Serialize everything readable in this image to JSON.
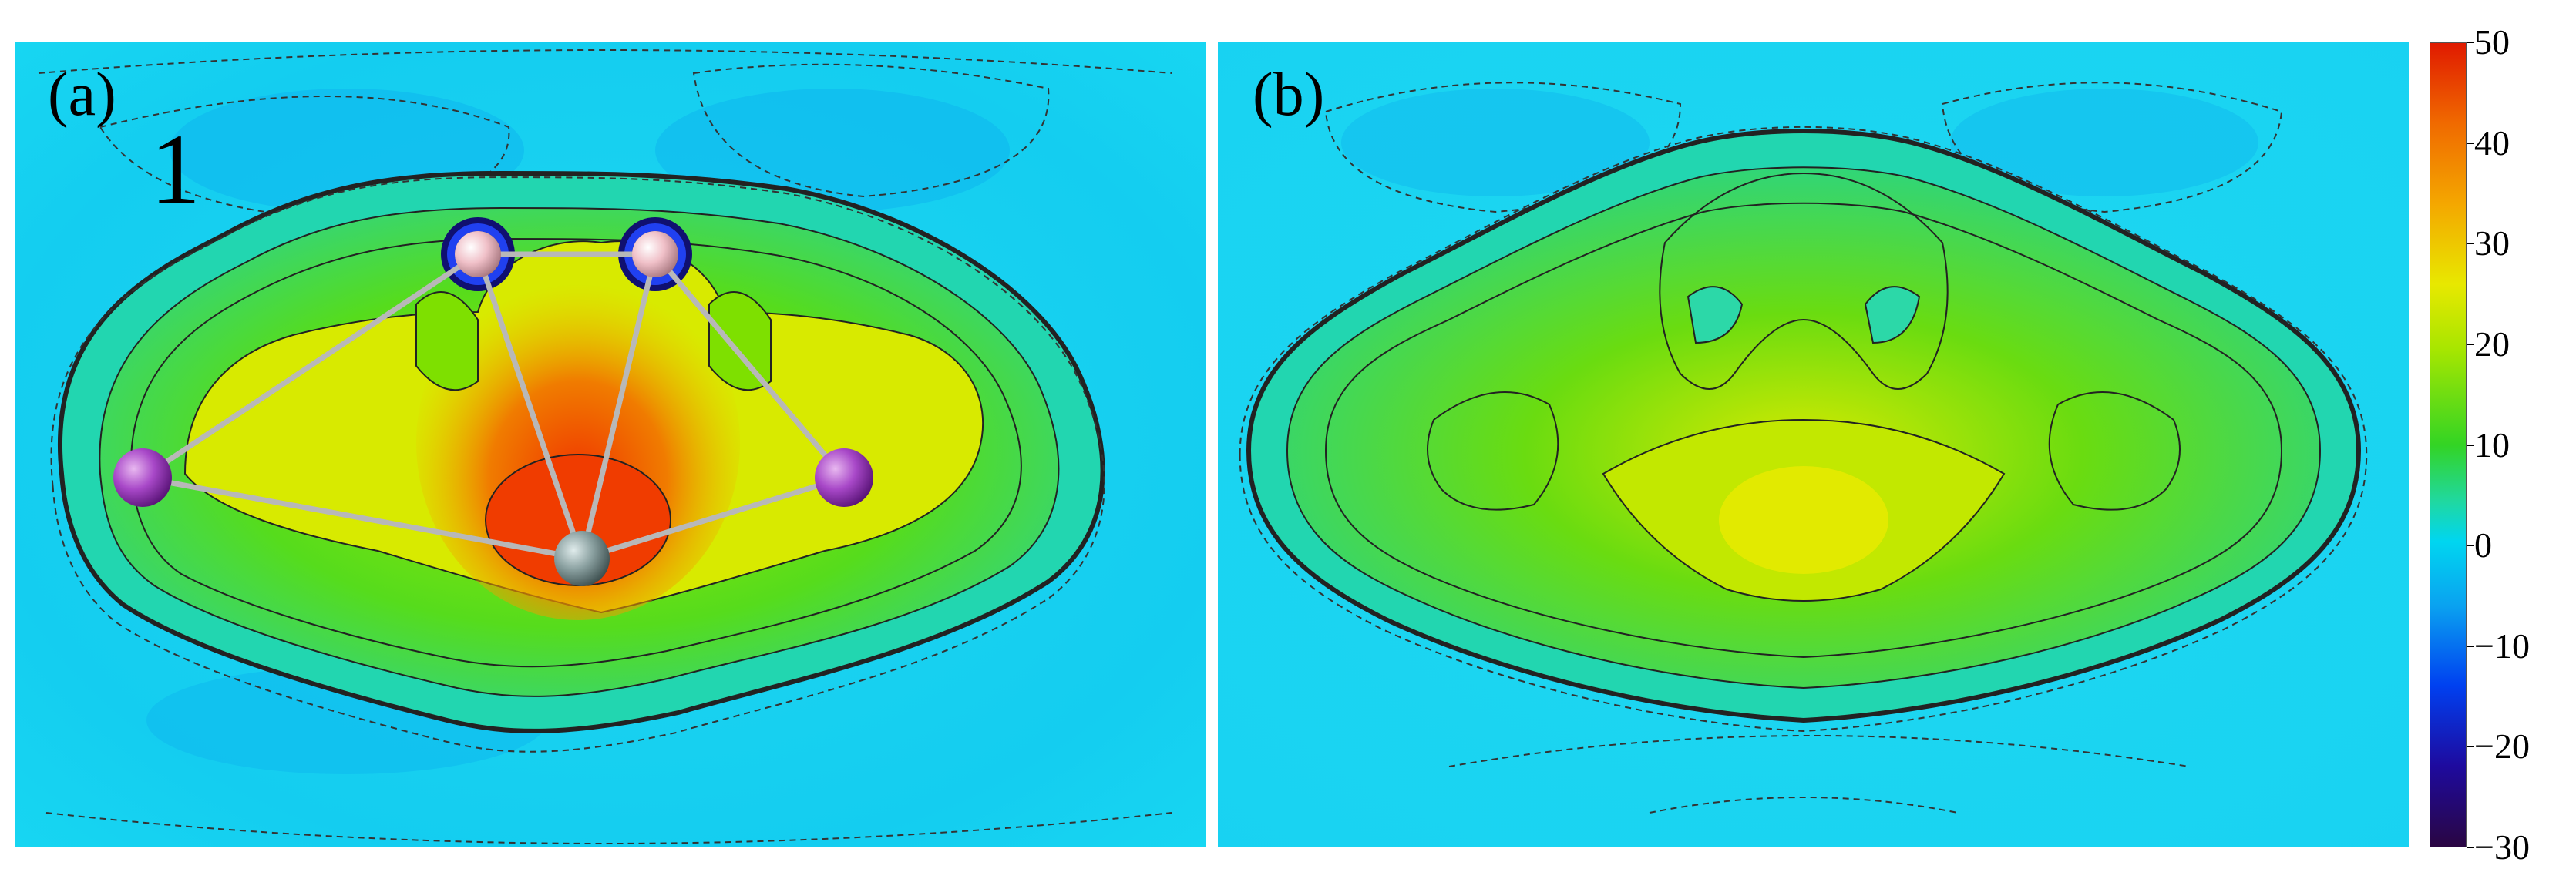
{
  "panels": [
    {
      "label": "(a)",
      "molecule_label": "1"
    },
    {
      "label": "(b)"
    }
  ],
  "colorbar": {
    "ticks": [
      "50",
      "40",
      "30",
      "20",
      "10",
      "0",
      "−10",
      "−20",
      "−30"
    ],
    "range": [
      -30,
      50
    ]
  },
  "colors": {
    "background_cyan": "#17dcf2",
    "green": "#33d424",
    "yellow": "#e8e800",
    "red": "#f03c00",
    "atom_purple": "#a040c0",
    "atom_pink": "#f3c4c9",
    "atom_gray": "#7f9090"
  }
}
